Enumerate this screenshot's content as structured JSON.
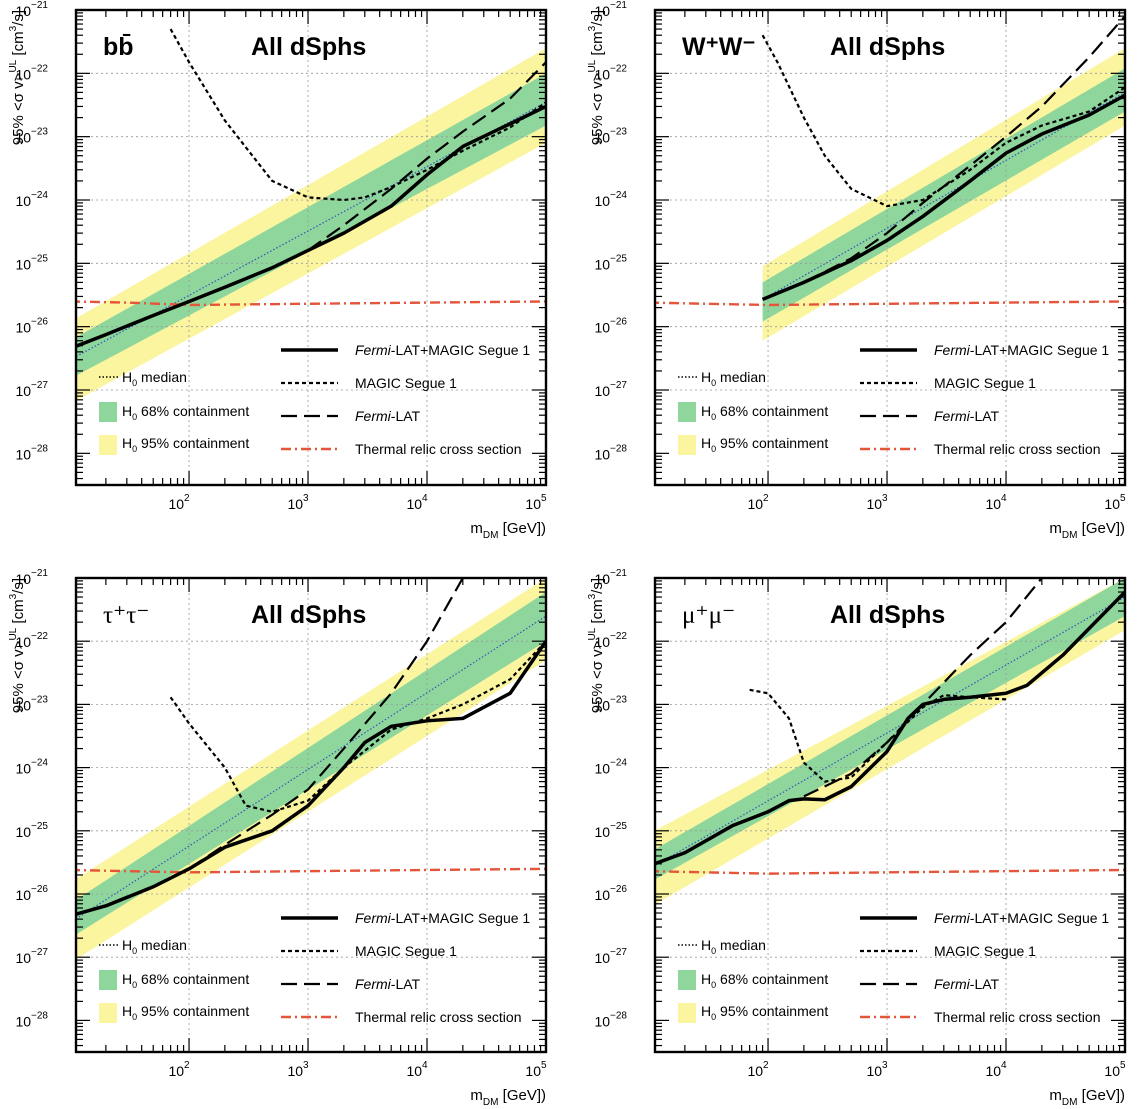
{
  "figure": {
    "x_axis_label": "m",
    "x_axis_label_sub": "DM",
    "x_axis_label_unit": " [GeV])",
    "y_axis_label_prefix": "95% <σ v>",
    "y_axis_label_sup": "UL",
    "y_axis_label_unit": " [cm",
    "y_axis_label_unit_sup": "3",
    "y_axis_label_unit_end": "/s]",
    "x_tick_labels": [
      {
        "value": 100,
        "base": "10",
        "exp": "2"
      },
      {
        "value": 1000,
        "base": "10",
        "exp": "3"
      },
      {
        "value": 10000,
        "base": "10",
        "exp": "4"
      },
      {
        "value": 100000,
        "base": "10",
        "exp": "5"
      }
    ],
    "y_tick_labels": [
      {
        "exp_value": -21,
        "base": "10",
        "exp": "−21"
      },
      {
        "exp_value": -22,
        "base": "10",
        "exp": "−22"
      },
      {
        "exp_value": -23,
        "base": "10",
        "exp": "−23"
      },
      {
        "exp_value": -24,
        "base": "10",
        "exp": "−24"
      },
      {
        "exp_value": -25,
        "base": "10",
        "exp": "−25"
      },
      {
        "exp_value": -26,
        "base": "10",
        "exp": "−26"
      },
      {
        "exp_value": -27,
        "base": "10",
        "exp": "−27"
      },
      {
        "exp_value": -28,
        "base": "10",
        "exp": "−28"
      }
    ],
    "colors": {
      "combined": "#000000",
      "magic": "#000000",
      "fermi": "#000000",
      "median": "#3355bb",
      "band68": "#8fd69c",
      "band95": "#fbf5a0",
      "thermal": "#e4553a"
    }
  },
  "legend": {
    "combined_italic": "Fermi",
    "combined_rest": "-LAT+MAGIC Segue 1",
    "magic": "MAGIC Segue 1",
    "fermi_italic": "Fermi",
    "fermi_rest": "-LAT",
    "thermal": "Thermal relic cross section",
    "median_base": "H",
    "median_sub": "0",
    "median_rest": " median",
    "c68_base": "H",
    "c68_sub": "0",
    "c68_rest": " 68% containment",
    "c95_base": "H",
    "c95_sub": "0",
    "c95_rest": " 95% containment"
  },
  "chart_data": [
    {
      "type": "line",
      "channel": "bb",
      "channel_label": "bb̄",
      "title": "All dSphs",
      "xscale": "log",
      "yscale": "log",
      "xlim": [
        10,
        100000
      ],
      "ylim": [
        1e-28,
        1e-21
      ],
      "grid": true,
      "legend_placement": "bottom",
      "series": [
        {
          "name": "Fermi-LAT+MAGIC Segue 1",
          "style": "solid",
          "x": [
            10,
            20,
            50,
            100,
            200,
            500,
            1000,
            2000,
            5000,
            10000,
            20000,
            50000,
            100000
          ],
          "y": [
            4.5e-27,
            7.5e-27,
            1.5e-26,
            2.5e-26,
            4.2e-26,
            8.5e-26,
            1.6e-25,
            3e-25,
            8e-25,
            2.5e-24,
            7e-24,
            1.6e-23,
            3e-23
          ]
        },
        {
          "name": "MAGIC Segue 1",
          "style": "dotted",
          "x": [
            70,
            100,
            200,
            500,
            1000,
            2000,
            3000,
            5000,
            10000,
            20000,
            50000,
            100000
          ],
          "y": [
            5e-22,
            1.5e-22,
            1.8e-23,
            2e-24,
            1.1e-24,
            1e-24,
            1.1e-24,
            1.6e-24,
            3e-24,
            6e-24,
            1.4e-23,
            3.5e-23
          ]
        },
        {
          "name": "Fermi-LAT",
          "style": "dashed",
          "x": [
            1000,
            2000,
            5000,
            10000,
            20000,
            50000,
            100000
          ],
          "y": [
            1.6e-25,
            4e-25,
            1.5e-24,
            4.5e-24,
            1.2e-23,
            4e-23,
            1.5e-22
          ]
        },
        {
          "name": "Thermal relic cross section",
          "style": "dashdot",
          "x": [
            10,
            30,
            100,
            1000,
            10000,
            100000
          ],
          "y": [
            2.5e-26,
            2.4e-26,
            2.2e-26,
            2.3e-26,
            2.4e-26,
            2.5e-26
          ]
        }
      ],
      "h0_median": {
        "x": [
          10,
          100000
        ],
        "y": [
          3e-27,
          3.5e-23
        ]
      },
      "h0_68": {
        "x": [
          10,
          100000
        ],
        "y_lo": [
          1.5e-27,
          1.5e-23
        ],
        "y_hi": [
          6e-27,
          1e-22
        ]
      },
      "h0_95": {
        "x": [
          10,
          100000
        ],
        "y_lo": [
          6e-28,
          8e-24
        ],
        "y_hi": [
          1.2e-26,
          2.5e-22
        ]
      }
    },
    {
      "type": "line",
      "channel": "WW",
      "channel_label": "W⁺W⁻",
      "title": "All dSphs",
      "xscale": "log",
      "yscale": "log",
      "xlim": [
        10,
        100000
      ],
      "ylim": [
        1e-28,
        1e-21
      ],
      "grid": true,
      "legend_placement": "bottom",
      "series": [
        {
          "name": "Fermi-LAT+MAGIC Segue 1",
          "style": "solid",
          "x": [
            90,
            200,
            500,
            1000,
            2000,
            5000,
            10000,
            20000,
            50000,
            100000
          ],
          "y": [
            2.7e-26,
            5e-26,
            1.1e-25,
            2.3e-25,
            5.5e-25,
            2e-24,
            5.5e-24,
            1.1e-23,
            2.2e-23,
            4.5e-23
          ]
        },
        {
          "name": "MAGIC Segue 1",
          "style": "dotted",
          "x": [
            90,
            120,
            200,
            300,
            500,
            1000,
            2000,
            5000,
            10000,
            20000,
            50000,
            100000
          ],
          "y": [
            4e-22,
            1.5e-22,
            2e-23,
            5e-24,
            1.5e-24,
            8e-25,
            1e-24,
            3e-24,
            8e-24,
            1.5e-23,
            2.5e-23,
            6e-23
          ]
        },
        {
          "name": "Fermi-LAT",
          "style": "dashed",
          "x": [
            90,
            200,
            500,
            1000,
            2000,
            5000,
            10000,
            20000,
            50000,
            100000
          ],
          "y": [
            2.7e-26,
            5e-26,
            1.2e-25,
            3e-25,
            9e-25,
            3.5e-24,
            1e-23,
            3e-23,
            1.8e-22,
            8e-22
          ]
        },
        {
          "name": "Thermal relic cross section",
          "style": "dashdot",
          "x": [
            10,
            30,
            100,
            1000,
            10000,
            100000
          ],
          "y": [
            2.4e-26,
            2.3e-26,
            2.2e-26,
            2.3e-26,
            2.4e-26,
            2.5e-26
          ]
        }
      ],
      "h0_median": {
        "x": [
          90,
          100000
        ],
        "y": [
          2.7e-26,
          5e-23
        ]
      },
      "h0_68": {
        "x": [
          90,
          100000
        ],
        "y_lo": [
          1.2e-26,
          2.5e-23
        ],
        "y_hi": [
          5e-26,
          1.2e-22
        ]
      },
      "h0_95": {
        "x": [
          90,
          100000
        ],
        "y_lo": [
          6e-27,
          1.5e-23
        ],
        "y_hi": [
          9e-26,
          2.5e-22
        ]
      }
    },
    {
      "type": "line",
      "channel": "tautau",
      "channel_label": "τ⁺τ⁻",
      "title": "All dSphs",
      "xscale": "log",
      "yscale": "log",
      "xlim": [
        10,
        100000
      ],
      "ylim": [
        1e-28,
        1e-21
      ],
      "grid": true,
      "legend_placement": "bottom",
      "series": [
        {
          "name": "Fermi-LAT+MAGIC Segue 1",
          "style": "solid",
          "x": [
            10,
            20,
            50,
            100,
            200,
            500,
            1000,
            2000,
            3000,
            5000,
            10000,
            20000,
            50000,
            100000
          ],
          "y": [
            4.5e-27,
            6.5e-27,
            1.3e-26,
            2.5e-26,
            5.5e-26,
            1e-25,
            2.5e-25,
            1e-24,
            2.5e-24,
            4.5e-24,
            5.5e-24,
            6e-24,
            1.5e-23,
            1e-22
          ]
        },
        {
          "name": "MAGIC Segue 1",
          "style": "dotted",
          "x": [
            70,
            100,
            200,
            300,
            500,
            1000,
            2000,
            5000,
            10000,
            20000,
            50000,
            100000
          ],
          "y": [
            1.3e-23,
            5e-24,
            1e-24,
            2.5e-25,
            2e-25,
            3e-25,
            1e-24,
            4e-24,
            6e-24,
            1e-23,
            2.5e-23,
            1e-22
          ]
        },
        {
          "name": "Fermi-LAT",
          "style": "dashed",
          "x": [
            100,
            200,
            500,
            1000,
            2000,
            5000,
            10000,
            20000
          ],
          "y": [
            2.5e-26,
            6e-26,
            1.8e-25,
            4.5e-25,
            2e-24,
            1.5e-23,
            1e-22,
            1e-21
          ]
        },
        {
          "name": "Thermal relic cross section",
          "style": "dashdot",
          "x": [
            10,
            30,
            100,
            1000,
            10000,
            100000
          ],
          "y": [
            2.4e-26,
            2.3e-26,
            2.2e-26,
            2.3e-26,
            2.4e-26,
            2.5e-26
          ]
        }
      ],
      "h0_median": {
        "x": [
          10,
          100000
        ],
        "y": [
          3.5e-27,
          2.5e-22
        ]
      },
      "h0_68": {
        "x": [
          10,
          100000
        ],
        "y_lo": [
          2e-27,
          1e-22
        ],
        "y_hi": [
          7e-27,
          6e-22
        ]
      },
      "h0_95": {
        "x": [
          10,
          100000
        ],
        "y_lo": [
          8e-28,
          5e-23
        ],
        "y_hi": [
          1.5e-26,
          1e-21
        ]
      }
    },
    {
      "type": "line",
      "channel": "mumu",
      "channel_label": "μ⁺μ⁻",
      "title": "All dSphs",
      "xscale": "log",
      "yscale": "log",
      "xlim": [
        10,
        100000
      ],
      "ylim": [
        1e-28,
        1e-21
      ],
      "grid": true,
      "legend_placement": "bottom",
      "series": [
        {
          "name": "Fermi-LAT+MAGIC Segue 1",
          "style": "solid",
          "x": [
            10,
            20,
            50,
            100,
            150,
            200,
            300,
            500,
            1000,
            1500,
            2000,
            3000,
            5000,
            10000,
            15000,
            30000,
            100000
          ],
          "y": [
            2.8e-26,
            4.5e-26,
            1.2e-25,
            2e-25,
            3e-25,
            3.2e-25,
            3.1e-25,
            5e-25,
            1.8e-24,
            6e-24,
            1e-23,
            1.2e-23,
            1.3e-23,
            1.5e-23,
            2e-23,
            6e-23,
            6e-22
          ]
        },
        {
          "name": "MAGIC Segue 1",
          "style": "dotted",
          "x": [
            70,
            100,
            150,
            200,
            300,
            500,
            1000,
            2000,
            3000,
            5000,
            10000
          ],
          "y": [
            1.7e-23,
            1.5e-23,
            6e-24,
            1.2e-24,
            6e-25,
            7e-25,
            2.5e-24,
            9e-24,
            1.4e-23,
            1.3e-23,
            1.2e-23
          ]
        },
        {
          "name": "Fermi-LAT",
          "style": "dashed",
          "x": [
            200,
            500,
            1000,
            2000,
            5000,
            10000,
            20000
          ],
          "y": [
            3.5e-25,
            8e-25,
            2.5e-24,
            1e-23,
            6e-23,
            2e-22,
            1e-21
          ]
        },
        {
          "name": "Thermal relic cross section",
          "style": "dashdot",
          "x": [
            10,
            30,
            100,
            1000,
            10000,
            100000
          ],
          "y": [
            2.3e-26,
            2.2e-26,
            2.1e-26,
            2.2e-26,
            2.3e-26,
            2.4e-26
          ]
        }
      ],
      "h0_median": {
        "x": [
          10,
          100000
        ],
        "y": [
          2.5e-26,
          5e-22
        ]
      },
      "h0_68": {
        "x": [
          10,
          100000
        ],
        "y_lo": [
          1.5e-26,
          2.5e-22
        ],
        "y_hi": [
          4.5e-26,
          1e-21
        ]
      },
      "h0_95": {
        "x": [
          10,
          100000
        ],
        "y_lo": [
          6e-27,
          1.5e-22
        ],
        "y_hi": [
          9e-26,
          1e-21
        ]
      }
    }
  ]
}
